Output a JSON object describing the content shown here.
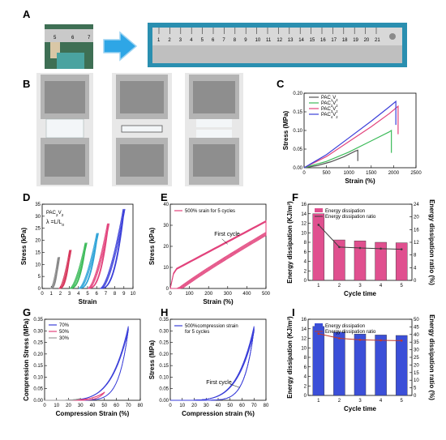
{
  "panels": {
    "A": "A",
    "B": "B",
    "C": "C",
    "D": "D",
    "E": "E",
    "F": "F",
    "G": "G",
    "H": "H",
    "I": "I"
  },
  "photo_a": {
    "ruler_before": [
      "5",
      "6",
      "7"
    ],
    "ruler_after": [
      "1",
      "2",
      "3",
      "4",
      "5",
      "6",
      "7",
      "8",
      "9",
      "10",
      "11",
      "12",
      "13",
      "14",
      "15",
      "16",
      "17",
      "18",
      "19",
      "20",
      "21"
    ]
  },
  "colors": {
    "arrow": "#2ea6e6",
    "bar_pink": "#e0508f",
    "bar_blue": "#3b4fd8",
    "line_dark": "#3c3c3c"
  },
  "chart_data": [
    {
      "panel": "C",
      "type": "line",
      "xlabel": "Strain (%)",
      "ylabel": "Stress (MPa)",
      "xlim": [
        0,
        2500
      ],
      "ylim": [
        0,
        0.2
      ],
      "xticks": [
        "0",
        "500",
        "1000",
        "1500",
        "2000",
        "2500"
      ],
      "yticks": [
        "0.00",
        "0.05",
        "0.10",
        "0.15",
        "0.20"
      ],
      "legend": {
        "position": "top-left"
      },
      "series": [
        {
          "name": "PAC1V2",
          "label": {
            "base": "PAC",
            "s1": "1",
            "mid": "V",
            "s2": "2"
          },
          "color": "#555555",
          "x": [
            0,
            300,
            600,
            900,
            1150,
            1200,
            1200
          ],
          "y": [
            0,
            0.006,
            0.016,
            0.03,
            0.045,
            0.047,
            0.018
          ]
        },
        {
          "name": "PAC2V2",
          "label": {
            "base": "PAC",
            "s1": "2",
            "mid": "V",
            "s2": "2"
          },
          "color": "#3dbb5a",
          "x": [
            0,
            500,
            1000,
            1500,
            1900,
            1950,
            1950
          ],
          "y": [
            0,
            0.017,
            0.042,
            0.072,
            0.096,
            0.1,
            0.04
          ]
        },
        {
          "name": "PAC3V2",
          "label": {
            "base": "PAC",
            "s1": "3",
            "mid": "V",
            "s2": "2"
          },
          "color": "#e2437c",
          "x": [
            0,
            500,
            1000,
            1500,
            1900,
            2050,
            2100,
            2100
          ],
          "y": [
            0,
            0.03,
            0.07,
            0.11,
            0.145,
            0.16,
            0.165,
            0.09
          ]
        },
        {
          "name": "PAC4V2",
          "label": {
            "base": "PAC",
            "s1": "4",
            "mid": "V",
            "s2": "2"
          },
          "color": "#3b3fd9",
          "x": [
            0,
            500,
            1000,
            1500,
            1900,
            2050,
            2050
          ],
          "y": [
            0,
            0.035,
            0.08,
            0.125,
            0.163,
            0.178,
            0.115
          ]
        }
      ]
    },
    {
      "panel": "D",
      "type": "line",
      "xlabel": "Strain",
      "ylabel": "Stress (kPa)",
      "xlim": [
        0,
        11
      ],
      "ylim": [
        0,
        35
      ],
      "xticks": [
        "0",
        "1",
        "2",
        "3",
        "4",
        "5",
        "6",
        "7",
        "8",
        "9",
        "10"
      ],
      "yticks": [
        "0",
        "5",
        "10",
        "15",
        "20",
        "25",
        "30",
        "35"
      ],
      "annotations": [
        {
          "base": "PAC",
          "s1": "2",
          "mid": "V",
          "s2": "2"
        },
        {
          "text": "λ =L/L",
          "sub": "o"
        }
      ],
      "loops": [
        {
          "x0": 1,
          "x1": 1.9,
          "ymax": 13,
          "color": "#888888"
        },
        {
          "x0": 2,
          "x1": 3.3,
          "ymax": 16,
          "color": "#d7375c"
        },
        {
          "x0": 3.3,
          "x1": 5.2,
          "ymax": 19,
          "color": "#3dbb5a"
        },
        {
          "x0": 4.4,
          "x1": 6.6,
          "ymax": 23,
          "color": "#2ea3d8"
        },
        {
          "x0": 5.5,
          "x1": 7.9,
          "ymax": 27,
          "color": "#e2437c"
        },
        {
          "x0": 7,
          "x1": 9.8,
          "ymax": 33,
          "color": "#3b3fd9"
        }
      ]
    },
    {
      "panel": "E",
      "type": "line",
      "xlabel": "Strain (%)",
      "ylabel": "Stress (kPa)",
      "xlim": [
        0,
        500
      ],
      "ylim": [
        0,
        40
      ],
      "xticks": [
        "0",
        "100",
        "200",
        "300",
        "400",
        "500"
      ],
      "yticks": [
        "0",
        "10",
        "20",
        "30",
        "40"
      ],
      "legend": "500% srain for 5 cycles",
      "annotation": "First cycle",
      "color": "#e2437c"
    },
    {
      "panel": "F",
      "type": "bar",
      "xlabel": "Cycle time",
      "ylabel": "Energy dissipation (KJ/m³)",
      "y2label": "Energy dissipation ratio (%)",
      "categories": [
        "1",
        "2",
        "3",
        "4",
        "5"
      ],
      "bars": [
        14.0,
        8.5,
        8.3,
        8.0,
        7.9
      ],
      "line": [
        17.5,
        10.5,
        10.2,
        10.0,
        9.8
      ],
      "ylim": [
        0,
        16
      ],
      "y2lim": [
        0,
        24
      ],
      "yticks": [
        "0",
        "2",
        "4",
        "6",
        "8",
        "10",
        "12",
        "14",
        "16"
      ],
      "y2ticks": [
        "0",
        "4",
        "8",
        "12",
        "16",
        "20",
        "24"
      ],
      "legend": [
        "Energy dissipation",
        "Energy dissipation ratio"
      ]
    },
    {
      "panel": "G",
      "type": "line",
      "xlabel": "Compression Strain (%)",
      "ylabel": "Compression Stress (MPa)",
      "xlim": [
        0,
        80
      ],
      "ylim": [
        0,
        0.35
      ],
      "xticks": [
        "0",
        "10",
        "20",
        "30",
        "40",
        "50",
        "60",
        "70",
        "80"
      ],
      "yticks": [
        "0.00",
        "0.05",
        "0.10",
        "0.15",
        "0.20",
        "0.25",
        "0.30",
        "0.35"
      ],
      "series": [
        {
          "name": "70%",
          "color": "#3b3fd9",
          "xmax": 70,
          "ymax": 0.32
        },
        {
          "name": "50%",
          "color": "#e2437c",
          "xmax": 50,
          "ymax": 0.035
        },
        {
          "name": "30%",
          "color": "#999999",
          "xmax": 30,
          "ymax": 0.008
        }
      ]
    },
    {
      "panel": "H",
      "type": "line",
      "xlabel": "Compression strain (%)",
      "ylabel": "Stress (MPa)",
      "xlim": [
        0,
        80
      ],
      "ylim": [
        0,
        0.35
      ],
      "xticks": [
        "0",
        "10",
        "20",
        "30",
        "40",
        "50",
        "60",
        "70",
        "80"
      ],
      "yticks": [
        "0.00",
        "0.05",
        "0.10",
        "0.15",
        "0.20",
        "0.25",
        "0.30",
        "0.35"
      ],
      "legend": [
        "500%compression strain",
        "for 5 cycles"
      ],
      "annotation": "First cycle",
      "color": "#3b3fd9"
    },
    {
      "panel": "I",
      "type": "bar",
      "xlabel": "Cycle time",
      "ylabel": "Energy dissipation (KJ/m³)",
      "y2label": "Energy dissipation ratio (%)",
      "categories": [
        "1",
        "2",
        "3",
        "4",
        "5"
      ],
      "bars": [
        14.5,
        13.3,
        12.9,
        12.7,
        12.6
      ],
      "line": [
        40.5,
        37.5,
        36.5,
        36.2,
        36.0
      ],
      "ylim": [
        0,
        16
      ],
      "y2lim": [
        0,
        50
      ],
      "yticks": [
        "0",
        "2",
        "4",
        "6",
        "8",
        "10",
        "12",
        "14",
        "16"
      ],
      "y2ticks": [
        "0",
        "5",
        "10",
        "15",
        "20",
        "25",
        "30",
        "35",
        "40",
        "45",
        "50"
      ],
      "legend": [
        "Energy dissipation",
        "Energy dissipation ratio"
      ]
    }
  ]
}
